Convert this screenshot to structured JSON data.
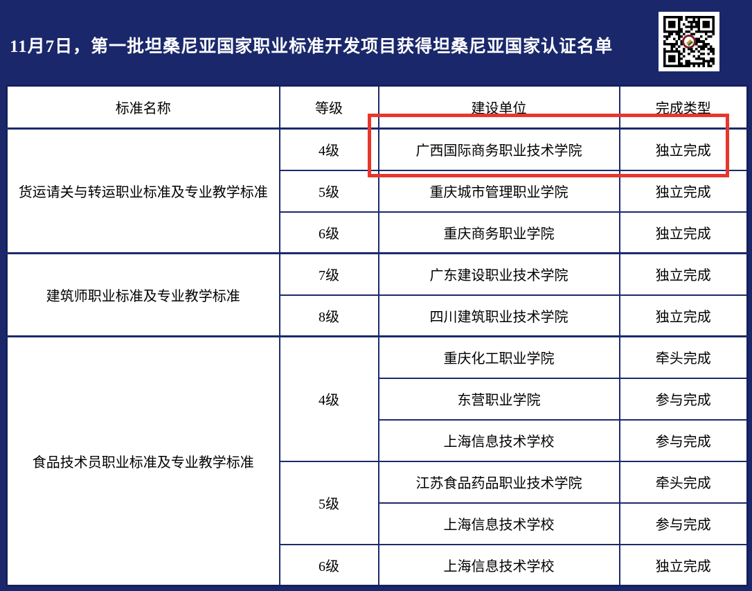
{
  "colors": {
    "navy_background": "#1a286b",
    "table_border": "#1b2a6b",
    "highlight_red": "#e8362c",
    "title_text": "#ffffff"
  },
  "header": {
    "title": "11月7日，第一批坦桑尼亚国家职业标准开发项目获得坦桑尼亚国家认证名单",
    "qr_code": "qr-code"
  },
  "table": {
    "headers": [
      "标准名称",
      "等级",
      "建设单位",
      "完成类型"
    ],
    "groups": [
      {
        "name": "货运请关与转运职业标准及专业教学标准",
        "rows": [
          {
            "level": "4级",
            "unit": "广西国际商务职业技术学院",
            "type": "独立完成",
            "highlighted": true
          },
          {
            "level": "5级",
            "unit": "重庆城市管理职业学院",
            "type": "独立完成"
          },
          {
            "level": "6级",
            "unit": "重庆商务职业学院",
            "type": "独立完成"
          }
        ]
      },
      {
        "name": "建筑师职业标准及专业教学标准",
        "rows": [
          {
            "level": "7级",
            "unit": "广东建设职业技术学院",
            "type": "独立完成"
          },
          {
            "level": "8级",
            "unit": "四川建筑职业技术学院",
            "type": "独立完成"
          }
        ]
      },
      {
        "name": "食品技术员职业标准及专业教学标准",
        "rows": [
          {
            "level": "4级",
            "unit": "重庆化工职业学院",
            "type": "牵头完成"
          },
          {
            "level": "4级",
            "unit": "东营职业学院",
            "type": "参与完成"
          },
          {
            "level": "4级",
            "unit": "上海信息技术学校",
            "type": "参与完成"
          },
          {
            "level": "5级",
            "unit": "江苏食品药品职业技术学院",
            "type": "牵头完成"
          },
          {
            "level": "5级",
            "unit": "上海信息技术学校",
            "type": "参与完成"
          },
          {
            "level": "6级",
            "unit": "上海信息技术学校",
            "type": "独立完成"
          }
        ]
      }
    ]
  }
}
